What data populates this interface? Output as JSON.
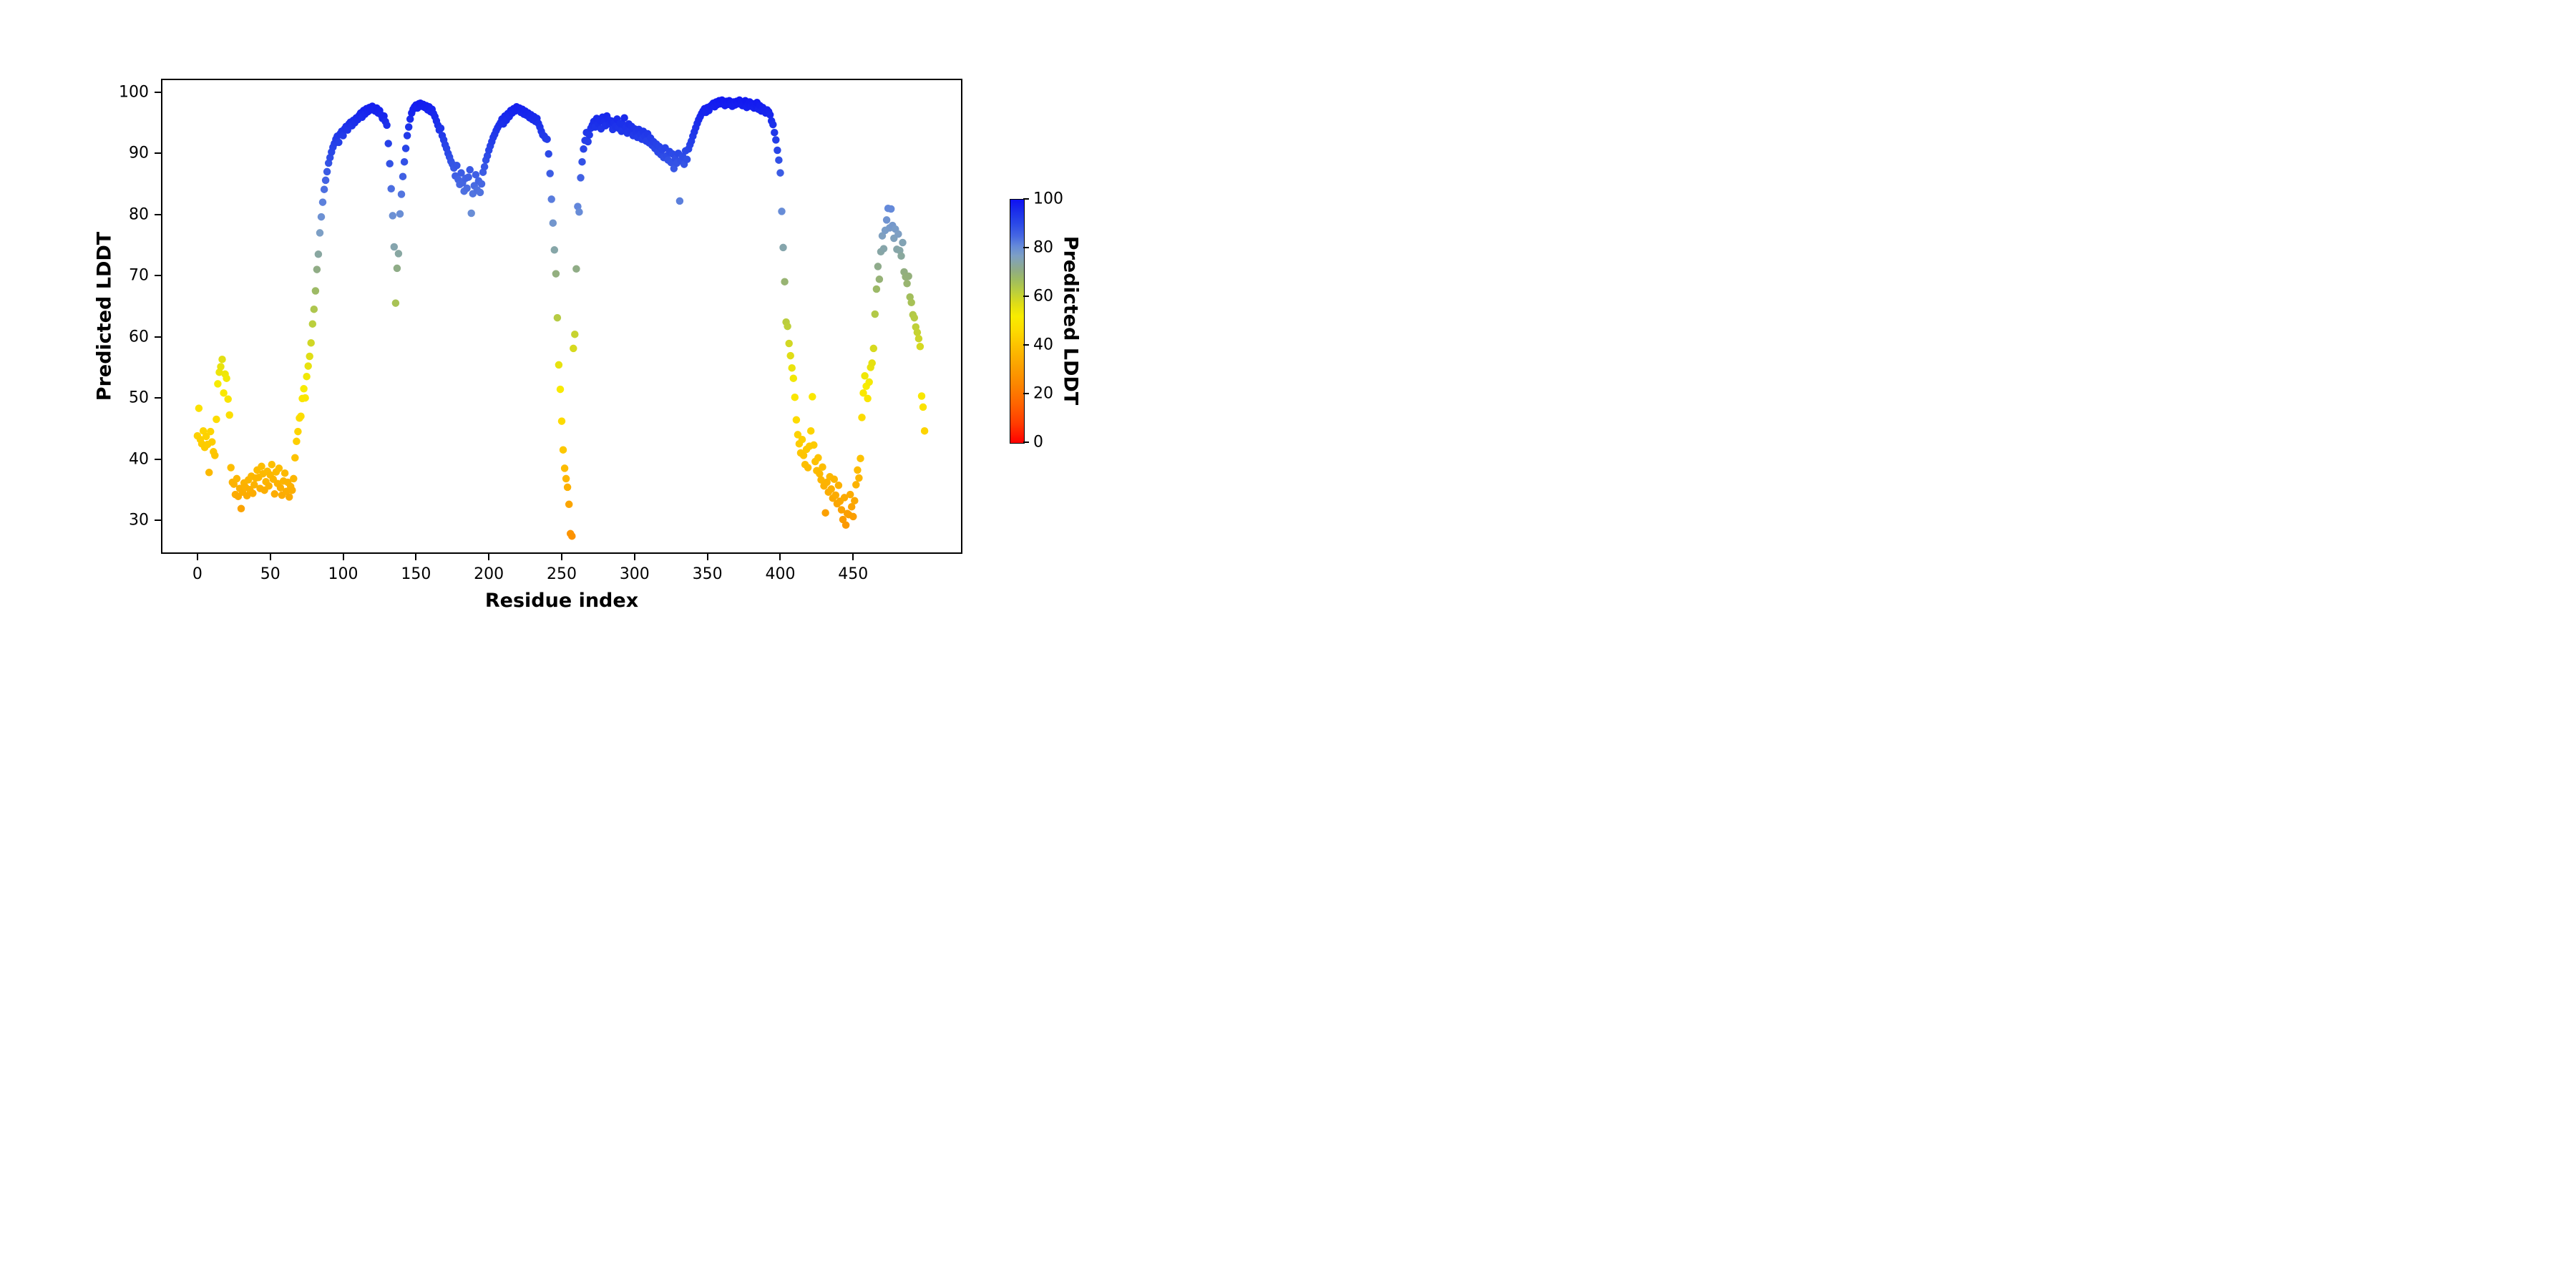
{
  "chart_data": {
    "type": "scatter",
    "title": "",
    "xlabel": "Residue index",
    "ylabel": "Predicted LDDT",
    "xlim": [
      -25,
      525
    ],
    "ylim": [
      24.5,
      102.2
    ],
    "x_ticks": [
      0,
      50,
      100,
      150,
      200,
      250,
      300,
      350,
      400,
      450
    ],
    "y_ticks": [
      30,
      40,
      50,
      60,
      70,
      80,
      90,
      100
    ],
    "grid": false,
    "marker_diameter_px": 10.5,
    "x_start": 0,
    "x_step": 1,
    "values": [
      43.8,
      48.3,
      43.2,
      42.5,
      44.6,
      41.9,
      43.7,
      42.4,
      37.8,
      44.5,
      42.8,
      41.2,
      40.6,
      46.5,
      52.3,
      54.2,
      55.1,
      56.3,
      50.8,
      53.9,
      53.2,
      49.8,
      47.2,
      38.6,
      36.2,
      35.9,
      34.2,
      36.8,
      33.9,
      35.2,
      31.9,
      34.6,
      36.1,
      35.4,
      34.0,
      36.6,
      35.0,
      37.2,
      34.4,
      35.8,
      36.9,
      38.2,
      37.0,
      35.2,
      38.8,
      37.6,
      34.9,
      36.3,
      38.0,
      35.6,
      37.4,
      39.1,
      36.7,
      34.3,
      37.9,
      36.0,
      38.5,
      35.3,
      34.1,
      36.4,
      37.7,
      34.7,
      36.2,
      33.8,
      35.5,
      34.9,
      36.8,
      40.2,
      42.9,
      44.5,
      46.7,
      47.0,
      49.9,
      51.5,
      50.0,
      53.5,
      55.2,
      56.8,
      59.0,
      62.1,
      64.5,
      67.5,
      71.0,
      73.5,
      77.0,
      79.6,
      82.0,
      84.1,
      85.6,
      87.0,
      88.4,
      89.3,
      90.2,
      91.0,
      91.6,
      92.3,
      92.8,
      91.8,
      93.2,
      93.6,
      92.9,
      94.0,
      94.4,
      93.8,
      94.8,
      95.1,
      94.5,
      95.4,
      95.0,
      95.8,
      95.5,
      96.2,
      96.6,
      95.9,
      97.0,
      96.4,
      97.3,
      96.8,
      97.5,
      97.1,
      97.7,
      97.2,
      96.9,
      97.4,
      96.6,
      97.0,
      96.3,
      95.7,
      96.1,
      95.2,
      94.6,
      91.6,
      88.3,
      84.2,
      79.8,
      74.7,
      65.5,
      71.2,
      73.6,
      80.1,
      83.3,
      86.2,
      88.6,
      90.8,
      92.9,
      94.3,
      95.6,
      96.6,
      97.2,
      97.6,
      97.9,
      97.4,
      98.1,
      98.2,
      97.7,
      98.0,
      97.5,
      97.8,
      97.1,
      97.6,
      96.8,
      97.2,
      96.5,
      96.0,
      95.3,
      94.6,
      93.8,
      94.1,
      92.9,
      92.2,
      91.4,
      90.8,
      90.0,
      89.4,
      88.7,
      88.2,
      87.6,
      86.3,
      88.0,
      85.7,
      84.9,
      86.8,
      85.2,
      83.8,
      85.9,
      84.3,
      86.1,
      87.3,
      80.2,
      83.4,
      84.7,
      86.5,
      84.0,
      85.5,
      83.6,
      85.0,
      86.9,
      87.8,
      88.9,
      89.6,
      90.5,
      91.2,
      91.9,
      92.6,
      93.1,
      93.7,
      94.2,
      94.6,
      95.0,
      95.6,
      94.8,
      96.1,
      95.4,
      96.5,
      96.0,
      97.0,
      96.6,
      97.3,
      96.9,
      97.6,
      97.1,
      97.4,
      96.7,
      97.2,
      96.4,
      96.9,
      96.2,
      96.6,
      95.8,
      96.3,
      95.5,
      96.0,
      95.2,
      95.7,
      94.9,
      94.3,
      93.6,
      93.0,
      92.8,
      92.4,
      92.3,
      89.9,
      86.7,
      82.5,
      78.6,
      74.2,
      70.3,
      63.1,
      55.4,
      51.4,
      46.2,
      41.5,
      38.5,
      36.8,
      35.4,
      32.6,
      27.8,
      27.4,
      58.1,
      60.4,
      71.1,
      81.3,
      80.4,
      86.0,
      88.6,
      90.7,
      92.1,
      93.4,
      91.9,
      93.0,
      94.1,
      94.6,
      95.2,
      94.3,
      95.7,
      94.9,
      95.4,
      94.0,
      95.9,
      95.1,
      94.5,
      96.1,
      95.5,
      94.8,
      95.3,
      93.9,
      95.0,
      94.4,
      95.6,
      94.1,
      94.9,
      93.6,
      94.7,
      95.8,
      94.2,
      93.3,
      94.8,
      93.8,
      94.4,
      92.9,
      94.0,
      93.4,
      92.6,
      93.9,
      93.1,
      92.3,
      93.6,
      92.8,
      92.0,
      93.2,
      91.7,
      92.5,
      91.3,
      91.9,
      90.8,
      91.5,
      90.2,
      91.1,
      89.8,
      90.6,
      89.3,
      90.9,
      89.6,
      88.9,
      90.3,
      88.5,
      89.9,
      87.5,
      89.1,
      88.4,
      90.0,
      82.2,
      88.8,
      89.5,
      88.2,
      90.4,
      89.0,
      90.7,
      91.4,
      92.0,
      92.8,
      93.5,
      94.2,
      94.9,
      95.5,
      96.0,
      96.5,
      96.9,
      97.3,
      96.7,
      97.5,
      97.0,
      97.7,
      97.9,
      98.2,
      97.6,
      98.4,
      98.0,
      98.6,
      98.1,
      98.7,
      98.3,
      97.8,
      98.5,
      98.0,
      98.6,
      98.2,
      97.7,
      98.4,
      97.9,
      98.5,
      98.1,
      98.7,
      98.3,
      97.8,
      98.2,
      98.6,
      97.5,
      98.0,
      98.4,
      97.7,
      98.1,
      97.4,
      97.9,
      98.3,
      97.2,
      97.8,
      96.9,
      97.5,
      97.0,
      96.6,
      97.1,
      96.8,
      96.3,
      95.3,
      94.7,
      93.4,
      92.2,
      90.5,
      88.9,
      86.8,
      80.5,
      74.6,
      69.0,
      62.4,
      61.7,
      58.9,
      56.9,
      54.9,
      53.2,
      50.1,
      46.4,
      44.0,
      42.5,
      41.0,
      43.2,
      40.6,
      39.1,
      41.6,
      38.6,
      42.1,
      44.6,
      50.2,
      42.3,
      39.6,
      38.1,
      40.2,
      37.6,
      36.6,
      38.7,
      35.6,
      31.2,
      36.2,
      34.6,
      37.1,
      35.1,
      33.6,
      36.7,
      34.1,
      32.7,
      35.7,
      33.1,
      31.7,
      30.1,
      33.7,
      29.2,
      31.1,
      30.9,
      34.2,
      32.2,
      30.6,
      33.2,
      35.8,
      38.2,
      36.9,
      40.1,
      46.8,
      50.8,
      53.6,
      51.9,
      49.9,
      52.6,
      55.0,
      55.7,
      58.1,
      63.7,
      67.8,
      71.5,
      69.4,
      73.9,
      76.5,
      74.4,
      77.4,
      79.1,
      81.0,
      77.8,
      80.9,
      78.2,
      76.1,
      77.6,
      74.3,
      76.8,
      74.1,
      73.2,
      75.4,
      70.6,
      69.8,
      68.7,
      69.9,
      66.5,
      65.6,
      63.6,
      63.1,
      61.6,
      60.7,
      59.7,
      58.4,
      50.3,
      48.5,
      44.6
    ],
    "colormap_stops": [
      [
        0,
        "#ff0000"
      ],
      [
        8,
        "#ff3c00"
      ],
      [
        16,
        "#ff6400"
      ],
      [
        24,
        "#fc8600"
      ],
      [
        32,
        "#fba301"
      ],
      [
        40,
        "#fdc200"
      ],
      [
        46,
        "#fdda00"
      ],
      [
        52,
        "#f8ec00"
      ],
      [
        57,
        "#dfdd16"
      ],
      [
        62,
        "#bccf3c"
      ],
      [
        67,
        "#9fbc60"
      ],
      [
        71,
        "#90ac85"
      ],
      [
        74,
        "#87a6a6"
      ],
      [
        77,
        "#7d9fc5"
      ],
      [
        81,
        "#6489da"
      ],
      [
        85,
        "#4667e2"
      ],
      [
        90,
        "#2b49e7"
      ],
      [
        95,
        "#1b2fea"
      ],
      [
        100,
        "#0f11f3"
      ]
    ],
    "colorbar": {
      "label": "Predicted LDDT",
      "ticks": [
        0,
        20,
        40,
        60,
        80,
        100
      ],
      "vmin": 0,
      "vmax": 100,
      "position": "right"
    },
    "colors": {
      "axis": "#000000",
      "background": "#ffffff"
    }
  }
}
